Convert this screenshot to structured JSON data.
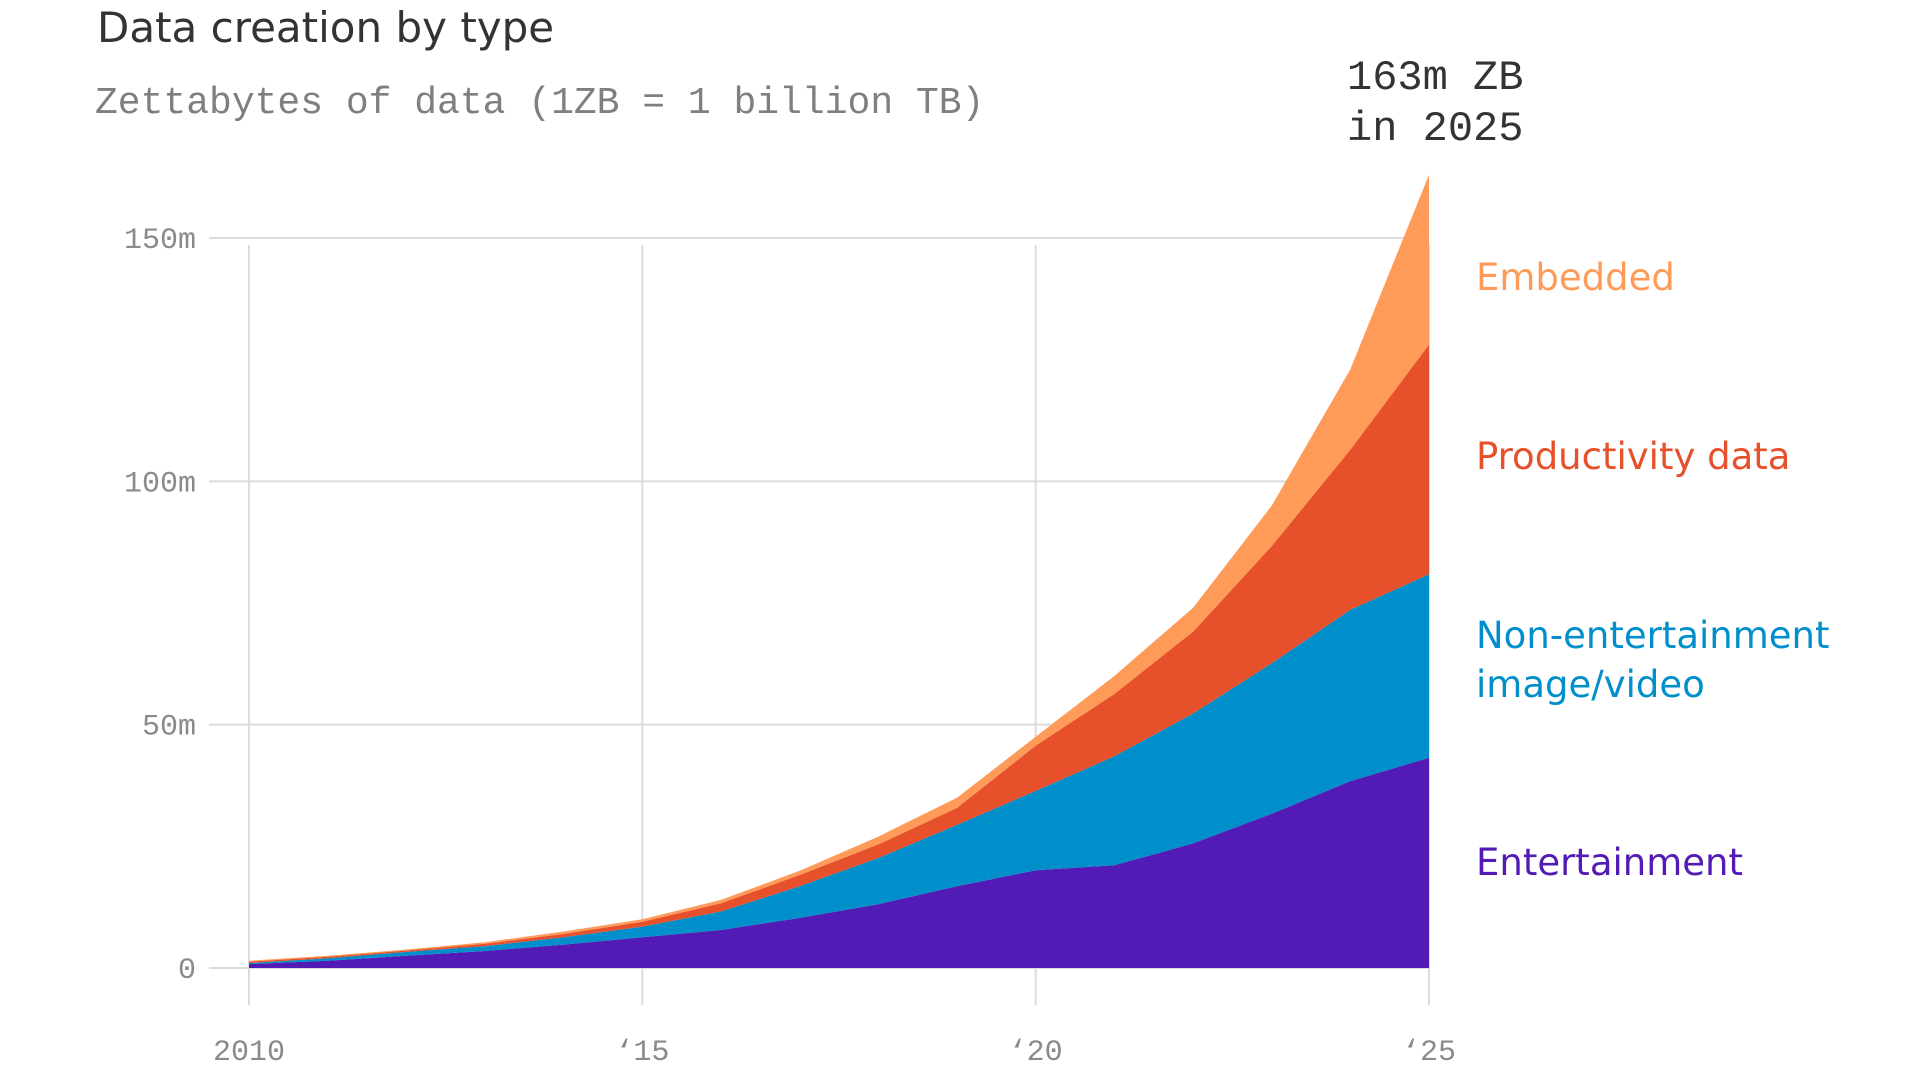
{
  "chart_data": {
    "type": "area",
    "stacked": true,
    "title": "Data creation by type",
    "subtitle": "Zettabytes of data (1ZB = 1 billion TB)",
    "annotation": [
      "163m ZB",
      "in 2025"
    ],
    "xlabel": "",
    "ylabel": "",
    "x": [
      2010,
      2011,
      2012,
      2013,
      2014,
      2015,
      2016,
      2017,
      2018,
      2019,
      2020,
      2021,
      2022,
      2023,
      2024,
      2025
    ],
    "xlim": [
      2010,
      2025
    ],
    "ylim": [
      0,
      150
    ],
    "x_ticks": [
      2010,
      2015,
      2020,
      2025
    ],
    "x_tick_labels": [
      "2010",
      "‘15",
      "‘20",
      "‘25"
    ],
    "y_ticks": [
      0,
      50,
      100,
      150
    ],
    "y_tick_labels": [
      "0",
      "50m",
      "100m",
      "150m"
    ],
    "grid": true,
    "legend": "direct-labels-right",
    "series": [
      {
        "name": "Entertainment",
        "label_lines": [
          "Entertainment"
        ],
        "color": "#521bb5",
        "values": [
          0.8,
          1.5,
          2.5,
          3.5,
          4.8,
          6.3,
          7.8,
          10.3,
          13.1,
          16.8,
          20.1,
          21.1,
          25.6,
          31.7,
          38.4,
          43.2
        ]
      },
      {
        "name": "Non-entertainment image/video",
        "label_lines": [
          "Non-entertainment",
          "image/video"
        ],
        "color": "#008fca",
        "values": [
          0.2,
          0.5,
          0.8,
          1.0,
          1.5,
          2.2,
          3.8,
          6.5,
          9.5,
          12.6,
          16.3,
          22.4,
          26.7,
          30.9,
          35.2,
          37.7
        ]
      },
      {
        "name": "Productivity data",
        "label_lines": [
          "Productivity data"
        ],
        "color": "#e6502a",
        "values": [
          0.3,
          0.3,
          0.3,
          0.5,
          0.7,
          1.0,
          1.7,
          2.3,
          2.8,
          3.5,
          9.3,
          12.8,
          16.8,
          24.1,
          32.9,
          47.2
        ]
      },
      {
        "name": "Embedded",
        "label_lines": [
          "Embedded"
        ],
        "color": "#ff9b59",
        "values": [
          0.2,
          0.2,
          0.2,
          0.3,
          0.5,
          0.5,
          0.7,
          0.9,
          1.6,
          2.1,
          1.8,
          3.7,
          4.9,
          8.3,
          16.5,
          34.9
        ]
      }
    ]
  }
}
